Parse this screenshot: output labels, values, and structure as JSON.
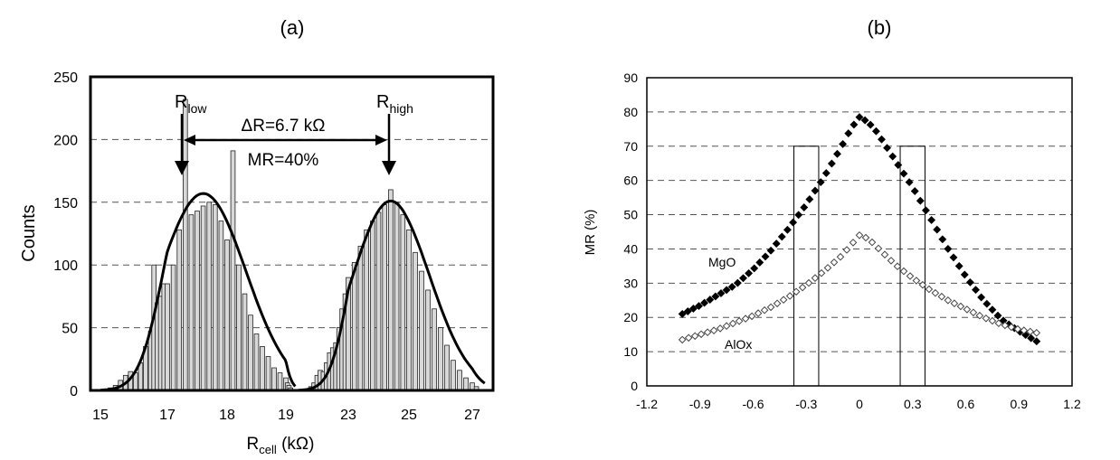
{
  "chart_data": [
    {
      "type": "bar",
      "panel_label": "(a)",
      "ylabel": "Counts",
      "xlabel": {
        "main": "R",
        "sub": "cell",
        "unit": " (kΩ)"
      },
      "ylim": [
        0,
        250
      ],
      "yticks": [
        0,
        50,
        100,
        150,
        200,
        250
      ],
      "xtick_labels": [
        "15",
        "17",
        "18",
        "19",
        "23",
        "25",
        "27"
      ],
      "grid": "horizontal-dashed",
      "low_peak": {
        "label_main": "R",
        "label_sub": "low",
        "bins": [
          {
            "x": 15.3,
            "count": 2
          },
          {
            "x": 15.45,
            "count": 4
          },
          {
            "x": 15.6,
            "count": 8
          },
          {
            "x": 15.75,
            "count": 12
          },
          {
            "x": 15.9,
            "count": 15
          },
          {
            "x": 16.05,
            "count": 14
          },
          {
            "x": 16.2,
            "count": 22
          },
          {
            "x": 16.35,
            "count": 35
          },
          {
            "x": 16.5,
            "count": 47
          },
          {
            "x": 16.6,
            "count": 100
          },
          {
            "x": 16.7,
            "count": 70
          },
          {
            "x": 16.8,
            "count": 75
          },
          {
            "x": 16.9,
            "count": 85
          },
          {
            "x": 17.0,
            "count": 85
          },
          {
            "x": 17.1,
            "count": 100
          },
          {
            "x": 17.2,
            "count": 128
          },
          {
            "x": 17.3,
            "count": 232
          },
          {
            "x": 17.4,
            "count": 140
          },
          {
            "x": 17.5,
            "count": 143
          },
          {
            "x": 17.6,
            "count": 147
          },
          {
            "x": 17.7,
            "count": 150
          },
          {
            "x": 17.8,
            "count": 148
          },
          {
            "x": 17.9,
            "count": 135
          },
          {
            "x": 18.0,
            "count": 120
          },
          {
            "x": 18.1,
            "count": 191
          },
          {
            "x": 18.2,
            "count": 100
          },
          {
            "x": 18.3,
            "count": 77
          },
          {
            "x": 18.4,
            "count": 60
          },
          {
            "x": 18.5,
            "count": 45
          },
          {
            "x": 18.6,
            "count": 35
          },
          {
            "x": 18.7,
            "count": 27
          },
          {
            "x": 18.8,
            "count": 18
          },
          {
            "x": 18.9,
            "count": 14
          },
          {
            "x": 19.0,
            "count": 10
          },
          {
            "x": 19.1,
            "count": 6
          },
          {
            "x": 19.2,
            "count": 4
          },
          {
            "x": 19.3,
            "count": 2
          }
        ],
        "fit": {
          "center": 17.6,
          "sigma": 0.72,
          "peak": 157
        }
      },
      "high_peak": {
        "label_main": "R",
        "label_sub": "high",
        "bins": [
          {
            "x": 20.6,
            "count": 3
          },
          {
            "x": 20.8,
            "count": 6
          },
          {
            "x": 21.0,
            "count": 12
          },
          {
            "x": 21.2,
            "count": 16
          },
          {
            "x": 21.4,
            "count": 15
          },
          {
            "x": 21.6,
            "count": 22
          },
          {
            "x": 21.8,
            "count": 30
          },
          {
            "x": 22.0,
            "count": 34
          },
          {
            "x": 22.2,
            "count": 38
          },
          {
            "x": 22.4,
            "count": 50
          },
          {
            "x": 22.6,
            "count": 65
          },
          {
            "x": 22.8,
            "count": 77
          },
          {
            "x": 23.0,
            "count": 90
          },
          {
            "x": 23.2,
            "count": 102
          },
          {
            "x": 23.4,
            "count": 115
          },
          {
            "x": 23.6,
            "count": 128
          },
          {
            "x": 23.8,
            "count": 135
          },
          {
            "x": 24.0,
            "count": 142
          },
          {
            "x": 24.2,
            "count": 148
          },
          {
            "x": 24.4,
            "count": 160
          },
          {
            "x": 24.6,
            "count": 150
          },
          {
            "x": 24.8,
            "count": 140
          },
          {
            "x": 25.0,
            "count": 128
          },
          {
            "x": 25.2,
            "count": 110
          },
          {
            "x": 25.4,
            "count": 95
          },
          {
            "x": 25.6,
            "count": 80
          },
          {
            "x": 25.8,
            "count": 65
          },
          {
            "x": 26.0,
            "count": 50
          },
          {
            "x": 26.2,
            "count": 36
          },
          {
            "x": 26.4,
            "count": 24
          },
          {
            "x": 26.6,
            "count": 16
          },
          {
            "x": 26.8,
            "count": 10
          },
          {
            "x": 27.0,
            "count": 6
          },
          {
            "x": 27.2,
            "count": 3
          }
        ],
        "fit": {
          "center": 24.4,
          "sigma": 1.25,
          "peak": 151
        }
      },
      "annotations": {
        "delta_r": "ΔR=6.7 kΩ",
        "mr": "MR=40%"
      }
    },
    {
      "type": "scatter",
      "panel_label": "(b)",
      "ylabel": "MR (%)",
      "xlabel": "",
      "xlim": [
        -1.2,
        1.2
      ],
      "ylim": [
        0,
        90
      ],
      "xticks": [
        -1.2,
        -0.9,
        -0.6,
        -0.3,
        0,
        0.3,
        0.6,
        0.9,
        1.2
      ],
      "xtick_labels": [
        "-1.2",
        "-0.9",
        "-0.6",
        "-0.3",
        "0",
        "0.3",
        "0.6",
        "0.9",
        "1.2"
      ],
      "yticks": [
        0,
        10,
        20,
        30,
        40,
        50,
        60,
        70,
        80,
        90
      ],
      "grid": "horizontal-dashed",
      "series": [
        {
          "name": "MgO",
          "marker": "filled-diamond",
          "x": [
            -1.0,
            -0.9,
            -0.8,
            -0.7,
            -0.6,
            -0.5,
            -0.4,
            -0.3,
            -0.2,
            -0.1,
            -0.05,
            0.0,
            0.05,
            0.1,
            0.2,
            0.3,
            0.4,
            0.5,
            0.6,
            0.7,
            0.8,
            0.9,
            1.0
          ],
          "y": [
            21,
            23.5,
            26.5,
            29.5,
            34,
            39.5,
            46,
            53,
            61,
            70,
            75,
            78.5,
            77,
            74,
            66,
            58,
            49,
            40,
            32,
            25,
            19.5,
            16,
            13
          ]
        },
        {
          "name": "AlOx",
          "marker": "open-diamond",
          "x": [
            -1.0,
            -0.9,
            -0.8,
            -0.7,
            -0.6,
            -0.5,
            -0.4,
            -0.3,
            -0.2,
            -0.1,
            -0.05,
            0.0,
            0.05,
            0.1,
            0.2,
            0.3,
            0.4,
            0.5,
            0.6,
            0.7,
            0.8,
            0.9,
            1.0
          ],
          "y": [
            13.5,
            15,
            16.5,
            18.5,
            20.5,
            23,
            26,
            29.5,
            33.5,
            38,
            41,
            44,
            43,
            40.5,
            35.5,
            31.5,
            28,
            25,
            22.5,
            20,
            18,
            16.5,
            15.5
          ]
        }
      ],
      "rect_markers": [
        {
          "x0": -0.37,
          "x1": -0.23,
          "y0": 0,
          "y1": 70
        },
        {
          "x0": 0.23,
          "x1": 0.37,
          "y0": 0,
          "y1": 70
        }
      ]
    }
  ]
}
